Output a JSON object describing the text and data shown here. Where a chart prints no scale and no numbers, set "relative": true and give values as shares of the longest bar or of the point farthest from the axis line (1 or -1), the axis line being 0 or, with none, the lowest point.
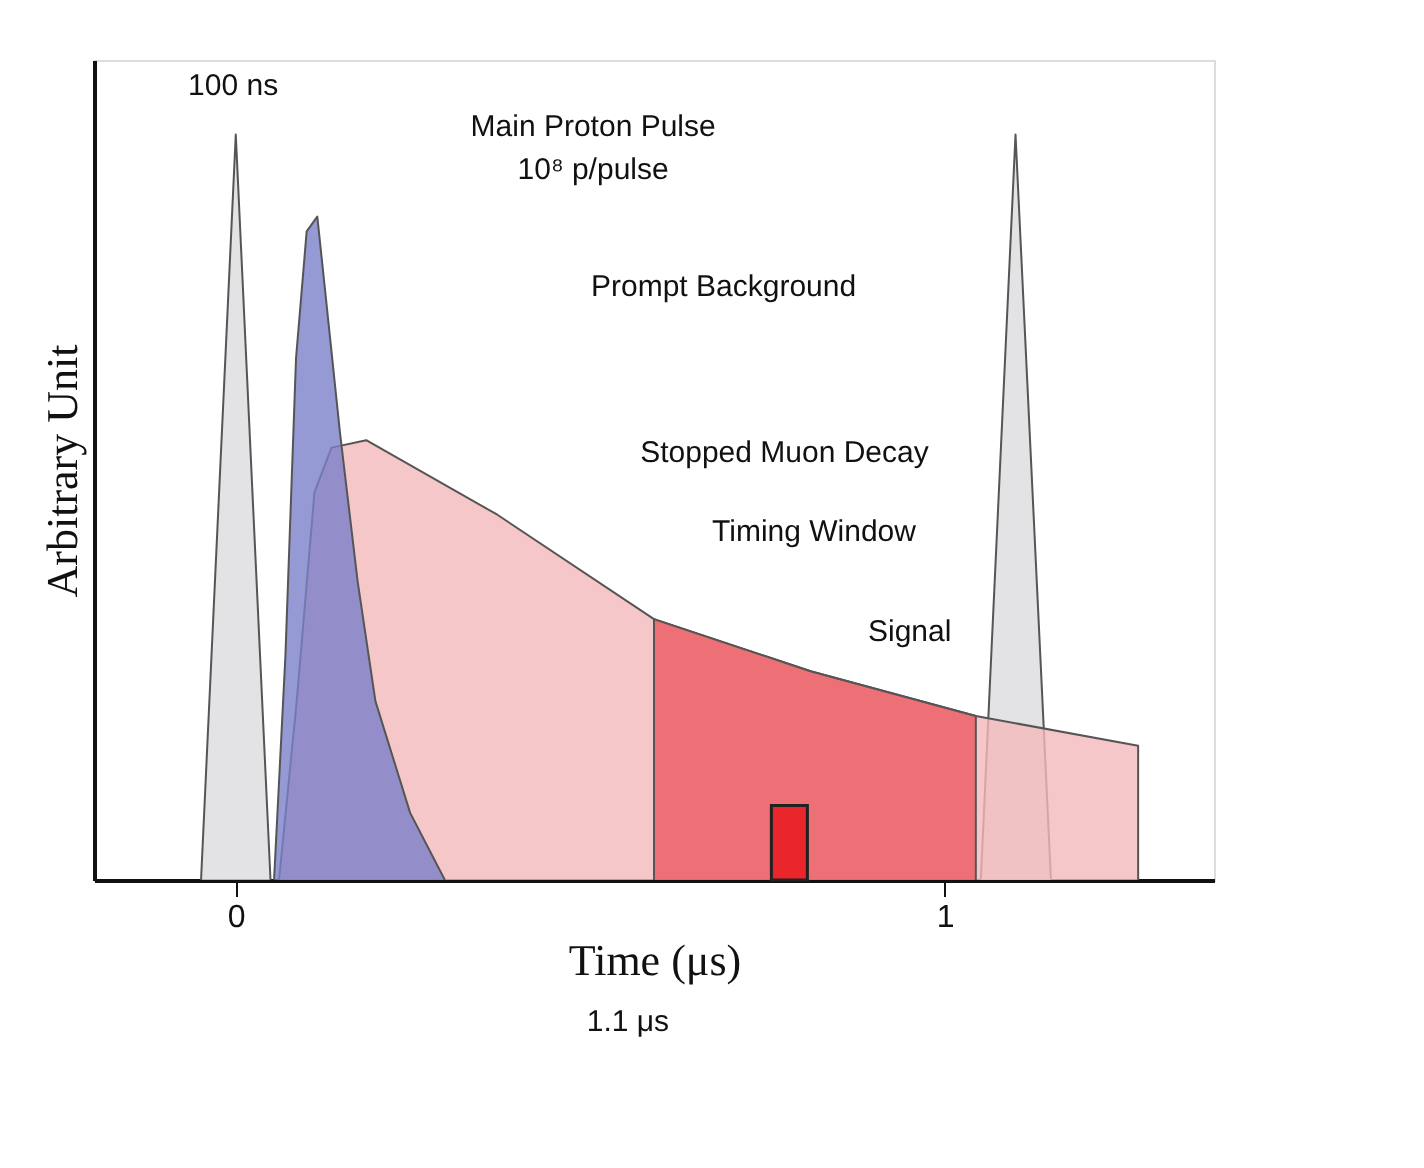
{
  "chart_data": {
    "type": "area",
    "relative": true,
    "xlabel": "Time (μs)",
    "ylabel": "Arbitrary Unit",
    "xlim": [
      -0.2,
      1.38
    ],
    "xticks": [
      0,
      1
    ],
    "grid": false,
    "series": [
      {
        "color": "#dcdcde",
        "x": [
          -0.049,
          0,
          0.049
        ],
        "values": [
          0,
          1,
          0
        ]
      },
      {
        "color": "#dcdcde",
        "x": [
          1.051,
          1.1,
          1.15
        ],
        "values": [
          0,
          1,
          0
        ]
      },
      {
        "color": "#f4b9bb",
        "x": [
          0.061,
          0.086,
          0.111,
          0.135,
          0.184,
          0.369,
          0.59,
          0.811,
          1.044,
          1.273,
          1.273
        ],
        "values": [
          0,
          0.24,
          0.52,
          0.58,
          0.59,
          0.49,
          0.35,
          0.28,
          0.22,
          0.18,
          0
        ]
      },
      {
        "color": "#ea5a60",
        "x": [
          0.59,
          0.59,
          0.811,
          1.044,
          1.044
        ],
        "values": [
          0,
          0.35,
          0.28,
          0.22,
          0
        ]
      },
      {
        "color": "#7b80c9",
        "x": [
          0.054,
          0.07,
          0.085,
          0.1,
          0.115,
          0.125,
          0.147,
          0.172,
          0.197,
          0.246,
          0.295
        ],
        "values": [
          0,
          0.3,
          0.7,
          0.87,
          0.89,
          0.8,
          0.6,
          0.4,
          0.24,
          0.09,
          0
        ]
      },
      {
        "type": "bar",
        "color": "#e8262c",
        "x": [
          0.781
        ],
        "values": [
          0.1
        ]
      }
    ],
    "annotations": [
      "100 ns",
      "Main Proton Pulse",
      "10⁸ p/pulse",
      "Prompt Background",
      "Stopped Muon Decay",
      "Timing Window",
      "Signal",
      "1.1 μs"
    ]
  }
}
